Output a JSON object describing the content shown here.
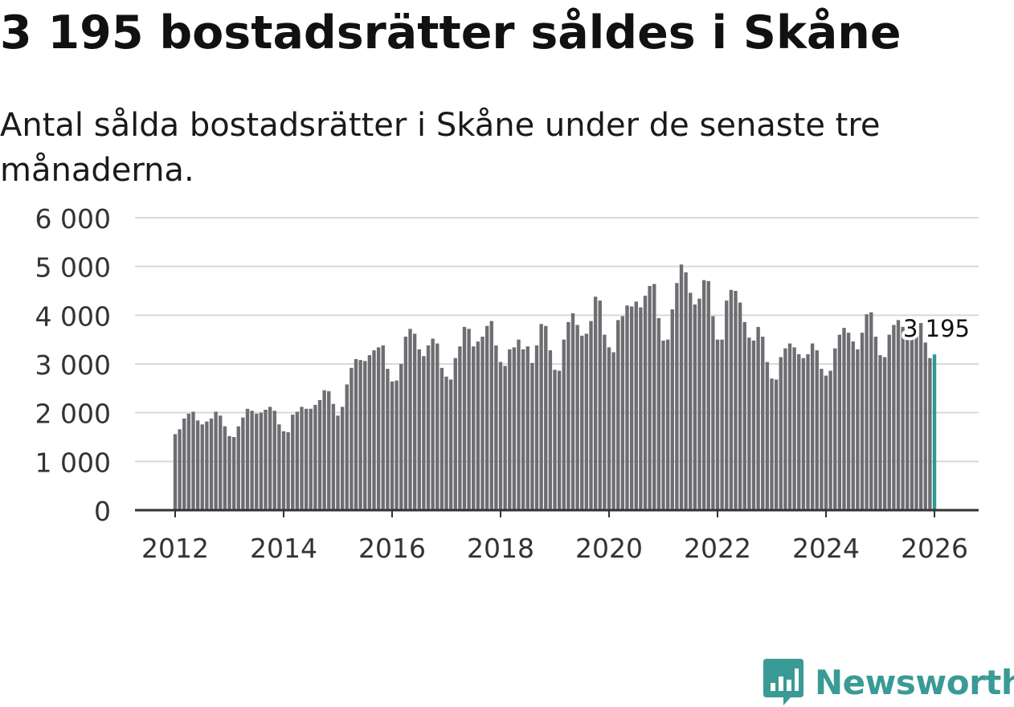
{
  "title": "3 195 bostadsrätter såldes i Skåne",
  "subtitle": "Antal sålda bostadsrätter i Skåne under de senaste tre månaderna.",
  "brand": {
    "name": "Newsworthy",
    "color": "#3a9a95"
  },
  "colors": {
    "bar": "#6e6d72",
    "highlight": "#2a9a93",
    "grid": "#d9d9d9",
    "axis": "#333333"
  },
  "chart_data": {
    "type": "bar",
    "title": "Antal sålda bostadsrätter i Skåne under de senaste tre månaderna.",
    "xlabel": "",
    "ylabel": "",
    "ylim": [
      0,
      6000
    ],
    "yticks": [
      0,
      1000,
      2000,
      3000,
      4000,
      5000,
      6000
    ],
    "ytick_labels": [
      "0",
      "1 000",
      "2 000",
      "3 000",
      "4 000",
      "5 000",
      "6 000"
    ],
    "xtick_labels": [
      "2012",
      "2014",
      "2016",
      "2018",
      "2020",
      "2022",
      "2024",
      "2026"
    ],
    "start": "2012-01",
    "frequency": "monthly",
    "last_value_label": "3 195",
    "values": [
      1560,
      1660,
      1880,
      1980,
      2020,
      1840,
      1760,
      1820,
      1880,
      2020,
      1940,
      1720,
      1520,
      1500,
      1720,
      1900,
      2080,
      2040,
      1980,
      2000,
      2060,
      2120,
      2040,
      1760,
      1620,
      1600,
      1960,
      2020,
      2120,
      2080,
      2080,
      2160,
      2260,
      2460,
      2440,
      2180,
      1940,
      2120,
      2580,
      2920,
      3100,
      3080,
      3060,
      3180,
      3280,
      3340,
      3380,
      2900,
      2640,
      2660,
      3000,
      3560,
      3720,
      3620,
      3300,
      3160,
      3380,
      3520,
      3420,
      2920,
      2740,
      2680,
      3120,
      3360,
      3760,
      3720,
      3360,
      3460,
      3560,
      3780,
      3880,
      3380,
      3040,
      2960,
      3300,
      3340,
      3500,
      3300,
      3360,
      3020,
      3380,
      3820,
      3780,
      3280,
      2880,
      2860,
      3500,
      3860,
      4040,
      3800,
      3580,
      3620,
      3880,
      4380,
      4300,
      3600,
      3340,
      3240,
      3900,
      3980,
      4200,
      4180,
      4280,
      4160,
      4400,
      4600,
      4640,
      3940,
      3480,
      3500,
      4120,
      4660,
      5040,
      4880,
      4460,
      4220,
      4340,
      4720,
      4700,
      3980,
      3500,
      3500,
      4300,
      4520,
      4500,
      4260,
      3860,
      3540,
      3480,
      3760,
      3560,
      3040,
      2700,
      2680,
      3140,
      3320,
      3420,
      3340,
      3200,
      3120,
      3200,
      3420,
      3280,
      2900,
      2760,
      2860,
      3320,
      3600,
      3740,
      3640,
      3460,
      3300,
      3640,
      4020,
      4060,
      3560,
      3180,
      3140,
      3600,
      3800,
      3900,
      3760,
      3600,
      3580,
      3640,
      3840,
      3440,
      3120,
      3195
    ]
  }
}
